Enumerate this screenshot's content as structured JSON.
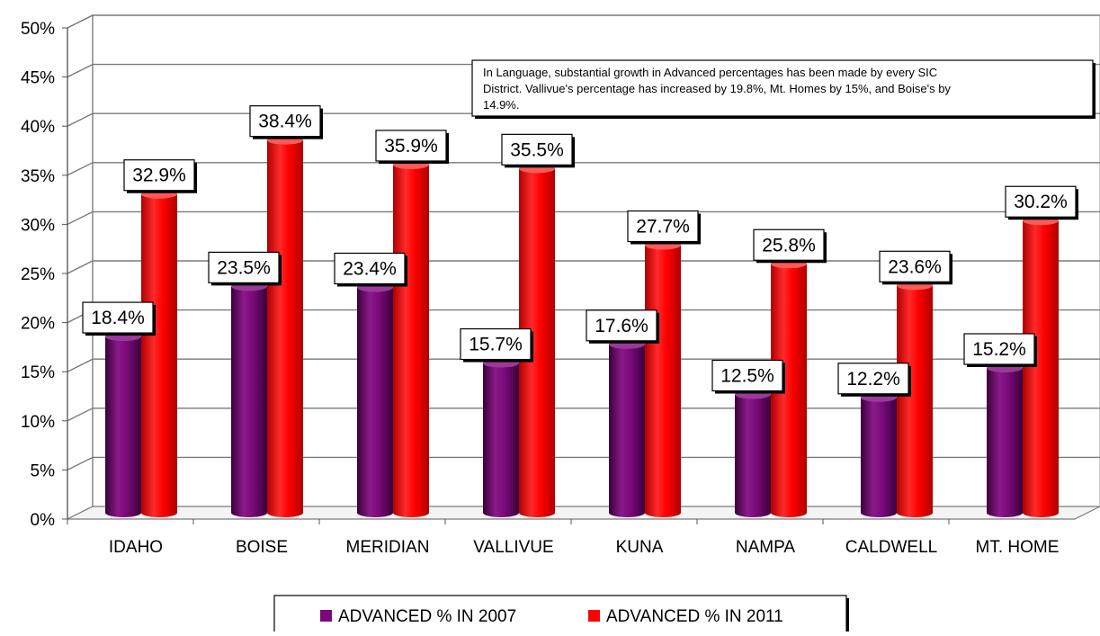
{
  "chart_data": {
    "type": "bar",
    "categories": [
      "IDAHO",
      "BOISE",
      "MERIDIAN",
      "VALLIVUE",
      "KUNA",
      "NAMPA",
      "CALDWELL",
      "MT. HOME"
    ],
    "series": [
      {
        "name": "ADVANCED % IN 2007",
        "color": "#7a0a7a",
        "values": [
          18.4,
          23.5,
          23.4,
          15.7,
          17.6,
          12.5,
          12.2,
          15.2
        ],
        "labels": [
          "18.4%",
          "23.5%",
          "23.4%",
          "15.7%",
          "17.6%",
          "12.5%",
          "12.2%",
          "15.2%"
        ]
      },
      {
        "name": "ADVANCED % IN 2011",
        "color": "#ff0000",
        "values": [
          32.9,
          38.4,
          35.9,
          35.5,
          27.7,
          25.8,
          23.6,
          30.2
        ],
        "labels": [
          "32.9%",
          "38.4%",
          "35.9%",
          "35.5%",
          "27.7%",
          "25.8%",
          "23.6%",
          "30.2%"
        ]
      }
    ],
    "ylim": [
      0,
      50
    ],
    "yticks": [
      0,
      5,
      10,
      15,
      20,
      25,
      30,
      35,
      40,
      45,
      50
    ],
    "ytick_labels": [
      "0%",
      "5%",
      "10%",
      "15%",
      "20%",
      "25%",
      "30%",
      "35%",
      "40%",
      "45%",
      "50%"
    ],
    "grid": true,
    "legend": "bottom",
    "annotation": {
      "lines": [
        "In Language,  substantial  growth  in Advanced percentages has been made by every SIC",
        "District. Vallivue's percentage has increased by 19.8%, Mt. Homes by 15%, and Boise's by",
        "14.9%."
      ]
    }
  }
}
